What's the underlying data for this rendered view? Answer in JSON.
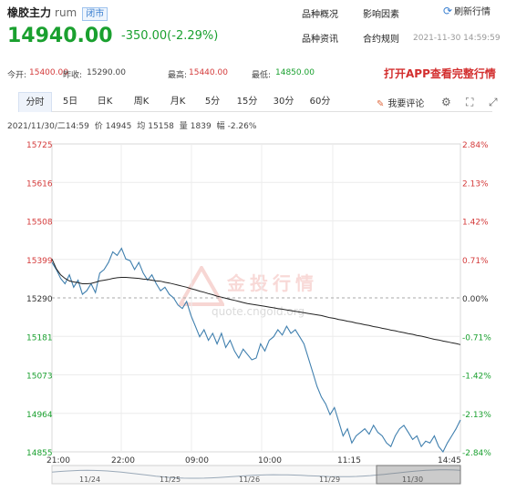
{
  "header": {
    "name": "橡胶主力",
    "code": "rum",
    "status": "闭市",
    "links": [
      "品种概况",
      "影响因素",
      "品种资讯",
      "合约规则"
    ],
    "refresh": "刷新行情",
    "price": "14940.00",
    "change": "-350.00(-2.29%)",
    "timestamp": "2021-11-30 14:59:59"
  },
  "stats": {
    "open_label": "今开:",
    "open": "15400.00",
    "prev_label": "昨收:",
    "prev": "15290.00",
    "high_label": "最高:",
    "high": "15440.00",
    "low_label": "最低:",
    "low": "14850.00",
    "app_cta": "打开APP查看完整行情"
  },
  "tabs": [
    "分时",
    "5日",
    "日K",
    "周K",
    "月K",
    "5分",
    "15分",
    "30分",
    "60分"
  ],
  "active_tab": 0,
  "comment_label": "我要评论",
  "info_line": {
    "time": "2021/11/30/二14:59",
    "price_label": "价",
    "price": "14945",
    "avg_label": "均",
    "avg": "15158",
    "vol_label": "量",
    "vol": "1839",
    "pct_label": "幅",
    "pct": "-2.26%"
  },
  "watermark": {
    "text": "金投行情",
    "url": "quote.cngold.org"
  },
  "colors": {
    "up": "#d43a3a",
    "down": "#1aa02f",
    "price_line": "#3f7fae",
    "avg_line": "#222222",
    "accent": "#3a7fd0"
  },
  "chart_data": {
    "type": "line",
    "ylim": [
      14855,
      15725
    ],
    "y_ticks": [
      "15725",
      "15616",
      "15508",
      "15399",
      "15290",
      "15181",
      "15073",
      "14964",
      "14855"
    ],
    "pct_ticks": [
      "2.84%",
      "2.13%",
      "1.42%",
      "0.71%",
      "0.00%",
      "-0.71%",
      "-1.42%",
      "-2.13%",
      "-2.84%"
    ],
    "prev_close": 15290,
    "x_ticks": [
      "21:00",
      "22:00",
      "09:00",
      "10:00",
      "11:15",
      "14:45"
    ],
    "nav_dates": [
      "11/24",
      "11/25",
      "11/26",
      "11/29",
      "11/30"
    ],
    "price_series": [
      15390,
      15370,
      15345,
      15330,
      15355,
      15320,
      15340,
      15300,
      15310,
      15330,
      15305,
      15360,
      15370,
      15390,
      15420,
      15410,
      15430,
      15400,
      15395,
      15370,
      15390,
      15360,
      15340,
      15355,
      15330,
      15310,
      15320,
      15300,
      15290,
      15270,
      15260,
      15280,
      15240,
      15210,
      15180,
      15200,
      15170,
      15190,
      15160,
      15190,
      15150,
      15170,
      15140,
      15120,
      15145,
      15130,
      15115,
      15120,
      15160,
      15140,
      15170,
      15180,
      15200,
      15185,
      15210,
      15190,
      15200,
      15180,
      15160,
      15120,
      15080,
      15040,
      15010,
      14990,
      14960,
      14980,
      14940,
      14900,
      14920,
      14880,
      14900,
      14910,
      14920,
      14905,
      14930,
      14910,
      14900,
      14880,
      14870,
      14900,
      14920,
      14930,
      14910,
      14890,
      14900,
      14870,
      14885,
      14880,
      14900,
      14870,
      14855,
      14880,
      14900,
      14920,
      14945
    ],
    "avg_series": [
      15400,
      15372,
      15355,
      15345,
      15338,
      15335,
      15333,
      15330,
      15330,
      15331,
      15334,
      15338,
      15340,
      15342,
      15345,
      15347,
      15348,
      15348,
      15347,
      15346,
      15345,
      15343,
      15342,
      15340,
      15338,
      15337,
      15334,
      15332,
      15329,
      15326,
      15323,
      15320,
      15316,
      15313,
      15309,
      15306,
      15302,
      15299,
      15295,
      15292,
      15289,
      15286,
      15283,
      15280,
      15277,
      15274,
      15272,
      15270,
      15268,
      15266,
      15264,
      15262,
      15260,
      15258,
      15256,
      15254,
      15252,
      15250,
      15248,
      15246,
      15244,
      15242,
      15240,
      15237,
      15234,
      15232,
      15229,
      15227,
      15224,
      15222,
      15219,
      15217,
      15214,
      15212,
      15209,
      15207,
      15204,
      15202,
      15199,
      15197,
      15194,
      15192,
      15189,
      15187,
      15184,
      15182,
      15179,
      15176,
      15173,
      15171,
      15168,
      15166,
      15163,
      15161,
      15158
    ]
  }
}
